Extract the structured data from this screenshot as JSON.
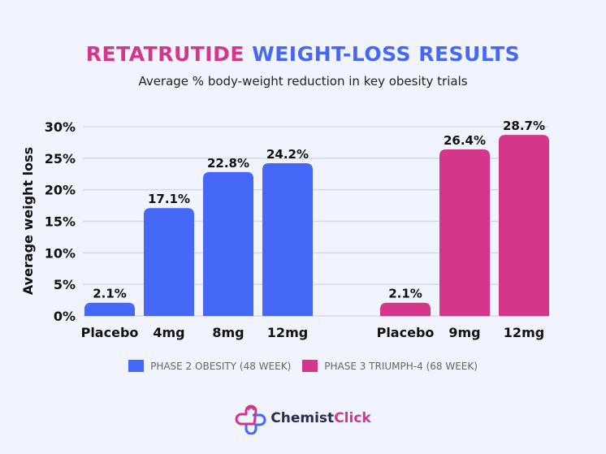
{
  "header": {
    "title_part1": "RETATRUTIDE",
    "title_part2": "WEIGHT-LOSS RESULTS",
    "subtitle": "Average % body-weight reduction in key obesity trials"
  },
  "colors": {
    "phase2": "#4568f6",
    "phase3": "#d4378a",
    "grid": "#d7d9e3",
    "text": "#111111",
    "background": "#f1f3fe"
  },
  "chart_data": {
    "type": "bar",
    "title": "RETATRUTIDE WEIGHT-LOSS RESULTS",
    "subtitle": "Average % body-weight reduction in key obesity trials",
    "xlabel": "",
    "ylabel": "Average weight loss",
    "ylim": [
      0,
      30
    ],
    "yticks": [
      0,
      5,
      10,
      15,
      20,
      25,
      30
    ],
    "ytick_labels": [
      "0%",
      "5%",
      "10%",
      "15%",
      "20%",
      "25%",
      "30%"
    ],
    "grid": true,
    "legend_position": "bottom",
    "groups": [
      {
        "name": "PHASE 2 OBESITY (48 WEEK)",
        "color": "#4568f6",
        "categories": [
          "Placebo",
          "4mg",
          "8mg",
          "12mg"
        ],
        "values": [
          2.1,
          17.1,
          22.8,
          24.2
        ],
        "labels": [
          "2.1%",
          "17.1%",
          "22.8%",
          "24.2%"
        ]
      },
      {
        "name": "PHASE 3 TRIUMPH-4 (68 WEEK)",
        "color": "#d4378a",
        "categories": [
          "Placebo",
          "9mg",
          "12mg"
        ],
        "values": [
          2.1,
          26.4,
          28.7
        ],
        "labels": [
          "2.1%",
          "26.4%",
          "28.7%"
        ]
      }
    ]
  },
  "legend": [
    {
      "label": "PHASE 2 OBESITY (48 WEEK)",
      "color": "#4568f6"
    },
    {
      "label": "PHASE 3 TRIUMPH-4 (68 WEEK)",
      "color": "#d4378a"
    }
  ],
  "logo": {
    "part1": "Chemist",
    "part2": "Click",
    "icon": "heart-cross-logo-icon"
  }
}
